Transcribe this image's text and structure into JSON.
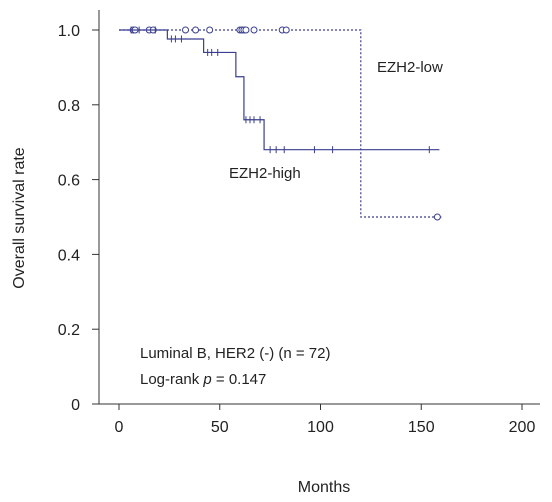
{
  "chart_data": {
    "type": "line",
    "subtype": "kaplan-meier",
    "xlabel": "Months",
    "ylabel": "Overall survival rate",
    "xlim": [
      0,
      200
    ],
    "ylim": [
      0,
      1.0
    ],
    "x_ticks": [
      "0",
      "50",
      "100",
      "150",
      "200"
    ],
    "y_ticks": [
      "0",
      "0.2",
      "0.4",
      "0.6",
      "0.8",
      "1.0"
    ],
    "grid": false,
    "annotations": {
      "cohort": "Luminal B, HER2 (-) (n = 72)",
      "logrank_prefix": "Log-rank ",
      "logrank_p": "p",
      "logrank_value": " = 0.147"
    },
    "series": [
      {
        "name": "EZH2-low",
        "color": "#3a3f8f",
        "line_style": "dotted",
        "censor_marker": "circle",
        "steps": [
          [
            0,
            1.0
          ],
          [
            120,
            0.5
          ],
          [
            160,
            0.5
          ]
        ],
        "censored": [
          [
            7,
            1.0
          ],
          [
            8,
            1.0
          ],
          [
            15,
            1.0
          ],
          [
            17,
            1.0
          ],
          [
            33,
            1.0
          ],
          [
            38,
            1.0
          ],
          [
            45,
            1.0
          ],
          [
            60,
            1.0
          ],
          [
            61,
            1.0
          ],
          [
            62,
            1.0
          ],
          [
            63,
            1.0
          ],
          [
            67,
            1.0
          ],
          [
            81,
            1.0
          ],
          [
            83,
            1.0
          ],
          [
            158,
            0.5
          ]
        ]
      },
      {
        "name": "EZH2-high",
        "color": "#3a3f8f",
        "line_style": "solid",
        "censor_marker": "tick",
        "steps": [
          [
            0,
            1.0
          ],
          [
            24,
            0.976
          ],
          [
            42,
            0.94
          ],
          [
            58,
            0.875
          ],
          [
            62,
            0.76
          ],
          [
            72,
            0.68
          ],
          [
            159,
            0.68
          ]
        ],
        "censored": [
          [
            6,
            1.0
          ],
          [
            10,
            1.0
          ],
          [
            18,
            1.0
          ],
          [
            26,
            0.976
          ],
          [
            28,
            0.976
          ],
          [
            31,
            0.976
          ],
          [
            44,
            0.94
          ],
          [
            46,
            0.94
          ],
          [
            49,
            0.94
          ],
          [
            63,
            0.76
          ],
          [
            65,
            0.76
          ],
          [
            67,
            0.76
          ],
          [
            70,
            0.76
          ],
          [
            75,
            0.68
          ],
          [
            78,
            0.68
          ],
          [
            82,
            0.68
          ],
          [
            97,
            0.68
          ],
          [
            106,
            0.68
          ],
          [
            154,
            0.68
          ]
        ]
      }
    ]
  }
}
